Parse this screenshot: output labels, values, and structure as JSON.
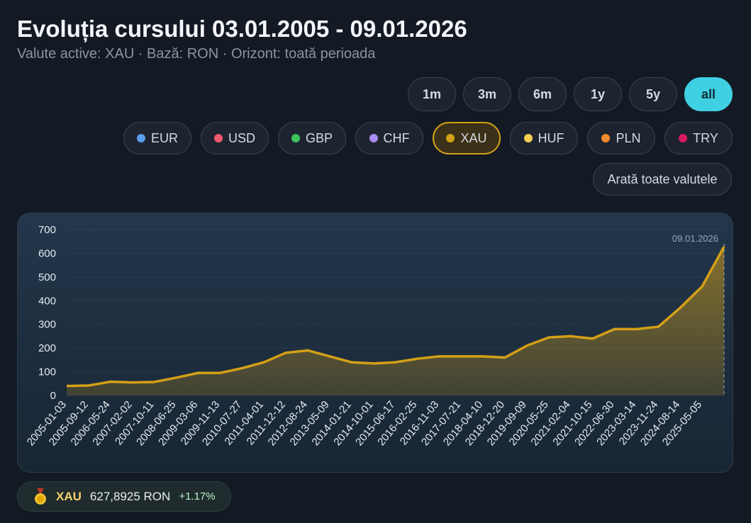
{
  "header": {
    "title": "Evoluția cursului 03.01.2005 - 09.01.2026",
    "subtitle": "Valute active: XAU · Bază: RON · Orizont: toată perioada"
  },
  "ranges": [
    "1m",
    "3m",
    "6m",
    "1y",
    "5y",
    "all"
  ],
  "currencies": [
    {
      "name": "EUR",
      "color": "#5b9cf0"
    },
    {
      "name": "USD",
      "color": "#ef5a6f"
    },
    {
      "name": "GBP",
      "color": "#3cc45a"
    },
    {
      "name": "CHF",
      "color": "#a98cf0"
    },
    {
      "name": "XAU",
      "color": "#d4a017"
    },
    {
      "name": "HUF",
      "color": "#f5cf4f"
    },
    {
      "name": "PLN",
      "color": "#f38a2e"
    },
    {
      "name": "TRY",
      "color": "#d81b60"
    }
  ],
  "show_all": "Arată toate valutele",
  "chart_data": {
    "type": "line",
    "color": "#d4a017",
    "categories": [
      "2005-01-03",
      "2005-09-12",
      "2006-05-24",
      "2007-02-02",
      "2007-10-11",
      "2008-06-25",
      "2009-03-06",
      "2009-11-13",
      "2010-07-27",
      "2011-04-01",
      "2011-12-12",
      "2012-08-24",
      "2013-05-09",
      "2014-01-21",
      "2014-10-01",
      "2015-06-17",
      "2016-02-25",
      "2016-11-03",
      "2017-07-21",
      "2018-04-10",
      "2018-12-20",
      "2019-09-09",
      "2020-05-25",
      "2021-02-04",
      "2021-10-15",
      "2022-06-30",
      "2023-03-14",
      "2023-11-24",
      "2024-08-14",
      "2025-05-05",
      null
    ],
    "values": [
      40,
      42,
      58,
      55,
      57,
      75,
      95,
      95,
      115,
      140,
      180,
      190,
      165,
      140,
      135,
      140,
      155,
      165,
      165,
      165,
      160,
      210,
      245,
      250,
      240,
      280,
      280,
      290,
      370,
      460,
      627.8925
    ],
    "ylim": [
      0,
      700
    ],
    "yticks": [
      0,
      100,
      200,
      300,
      400,
      500,
      600,
      700
    ],
    "grid": true,
    "annotation": "09.01.2026"
  },
  "ticker": {
    "symbol": "XAU",
    "price": "627,8925 RON",
    "change": "+1.17%"
  }
}
